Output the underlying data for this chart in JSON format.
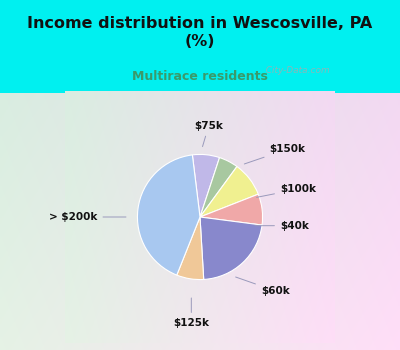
{
  "title": "Income distribution in Wescosville, PA\n(%)",
  "subtitle": "Multirace residents",
  "title_color": "#111111",
  "subtitle_color": "#3a9a6a",
  "bg_color": "#00f0f0",
  "labels": [
    "$75k",
    "$150k",
    "$100k",
    "$40k",
    "$60k",
    "$125k",
    "> $200k"
  ],
  "sizes": [
    7,
    5,
    9,
    8,
    22,
    7,
    42
  ],
  "colors": [
    "#c0b8e8",
    "#a8c8a0",
    "#f0f090",
    "#f0a8a8",
    "#8888cc",
    "#f0c898",
    "#a8c8f0"
  ],
  "watermark": "  City-Data.com",
  "startangle": 97
}
